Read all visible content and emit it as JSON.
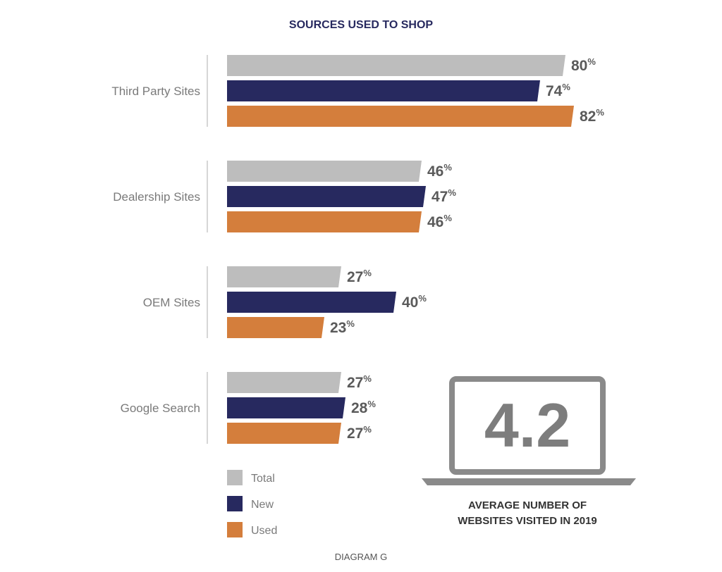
{
  "chart_data": {
    "type": "bar",
    "orientation": "horizontal",
    "title": "SOURCES USED TO SHOP",
    "categories": [
      "Third Party Sites",
      "Dealership Sites",
      "OEM Sites",
      "Google Search"
    ],
    "series": [
      {
        "name": "Total",
        "values": [
          80,
          46,
          27,
          27
        ],
        "color": "#bdbdbd"
      },
      {
        "name": "New",
        "values": [
          74,
          47,
          40,
          28
        ],
        "color": "#27295f"
      },
      {
        "name": "Used",
        "values": [
          82,
          46,
          23,
          27
        ],
        "color": "#d47e3c"
      }
    ],
    "value_suffix": "%",
    "xlim": [
      0,
      100
    ],
    "grid": false,
    "legend_position": "bottom-left"
  },
  "callout": {
    "value": "4.2",
    "caption_line1": "AVERAGE NUMBER OF",
    "caption_line2": "WEBSITES VISITED IN 2019",
    "icon": "laptop-icon"
  },
  "footer": "DIAGRAM G",
  "colors": {
    "title": "#27295f",
    "total": "#bdbdbd",
    "new": "#27295f",
    "used": "#d47e3c",
    "laptop": "#8a8a8a"
  }
}
